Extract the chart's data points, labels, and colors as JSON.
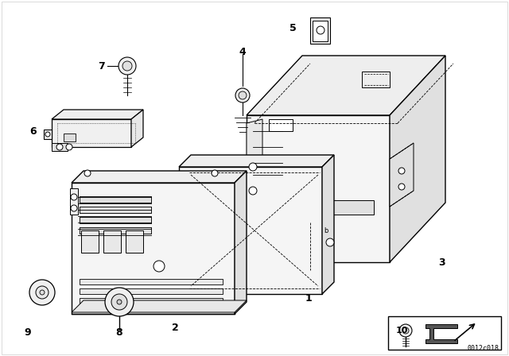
{
  "bg_color": "#ffffff",
  "line_color": "#000000",
  "diagram_code": "0012c018",
  "figsize": [
    6.4,
    4.48
  ],
  "dpi": 100,
  "border_color": "#000000"
}
